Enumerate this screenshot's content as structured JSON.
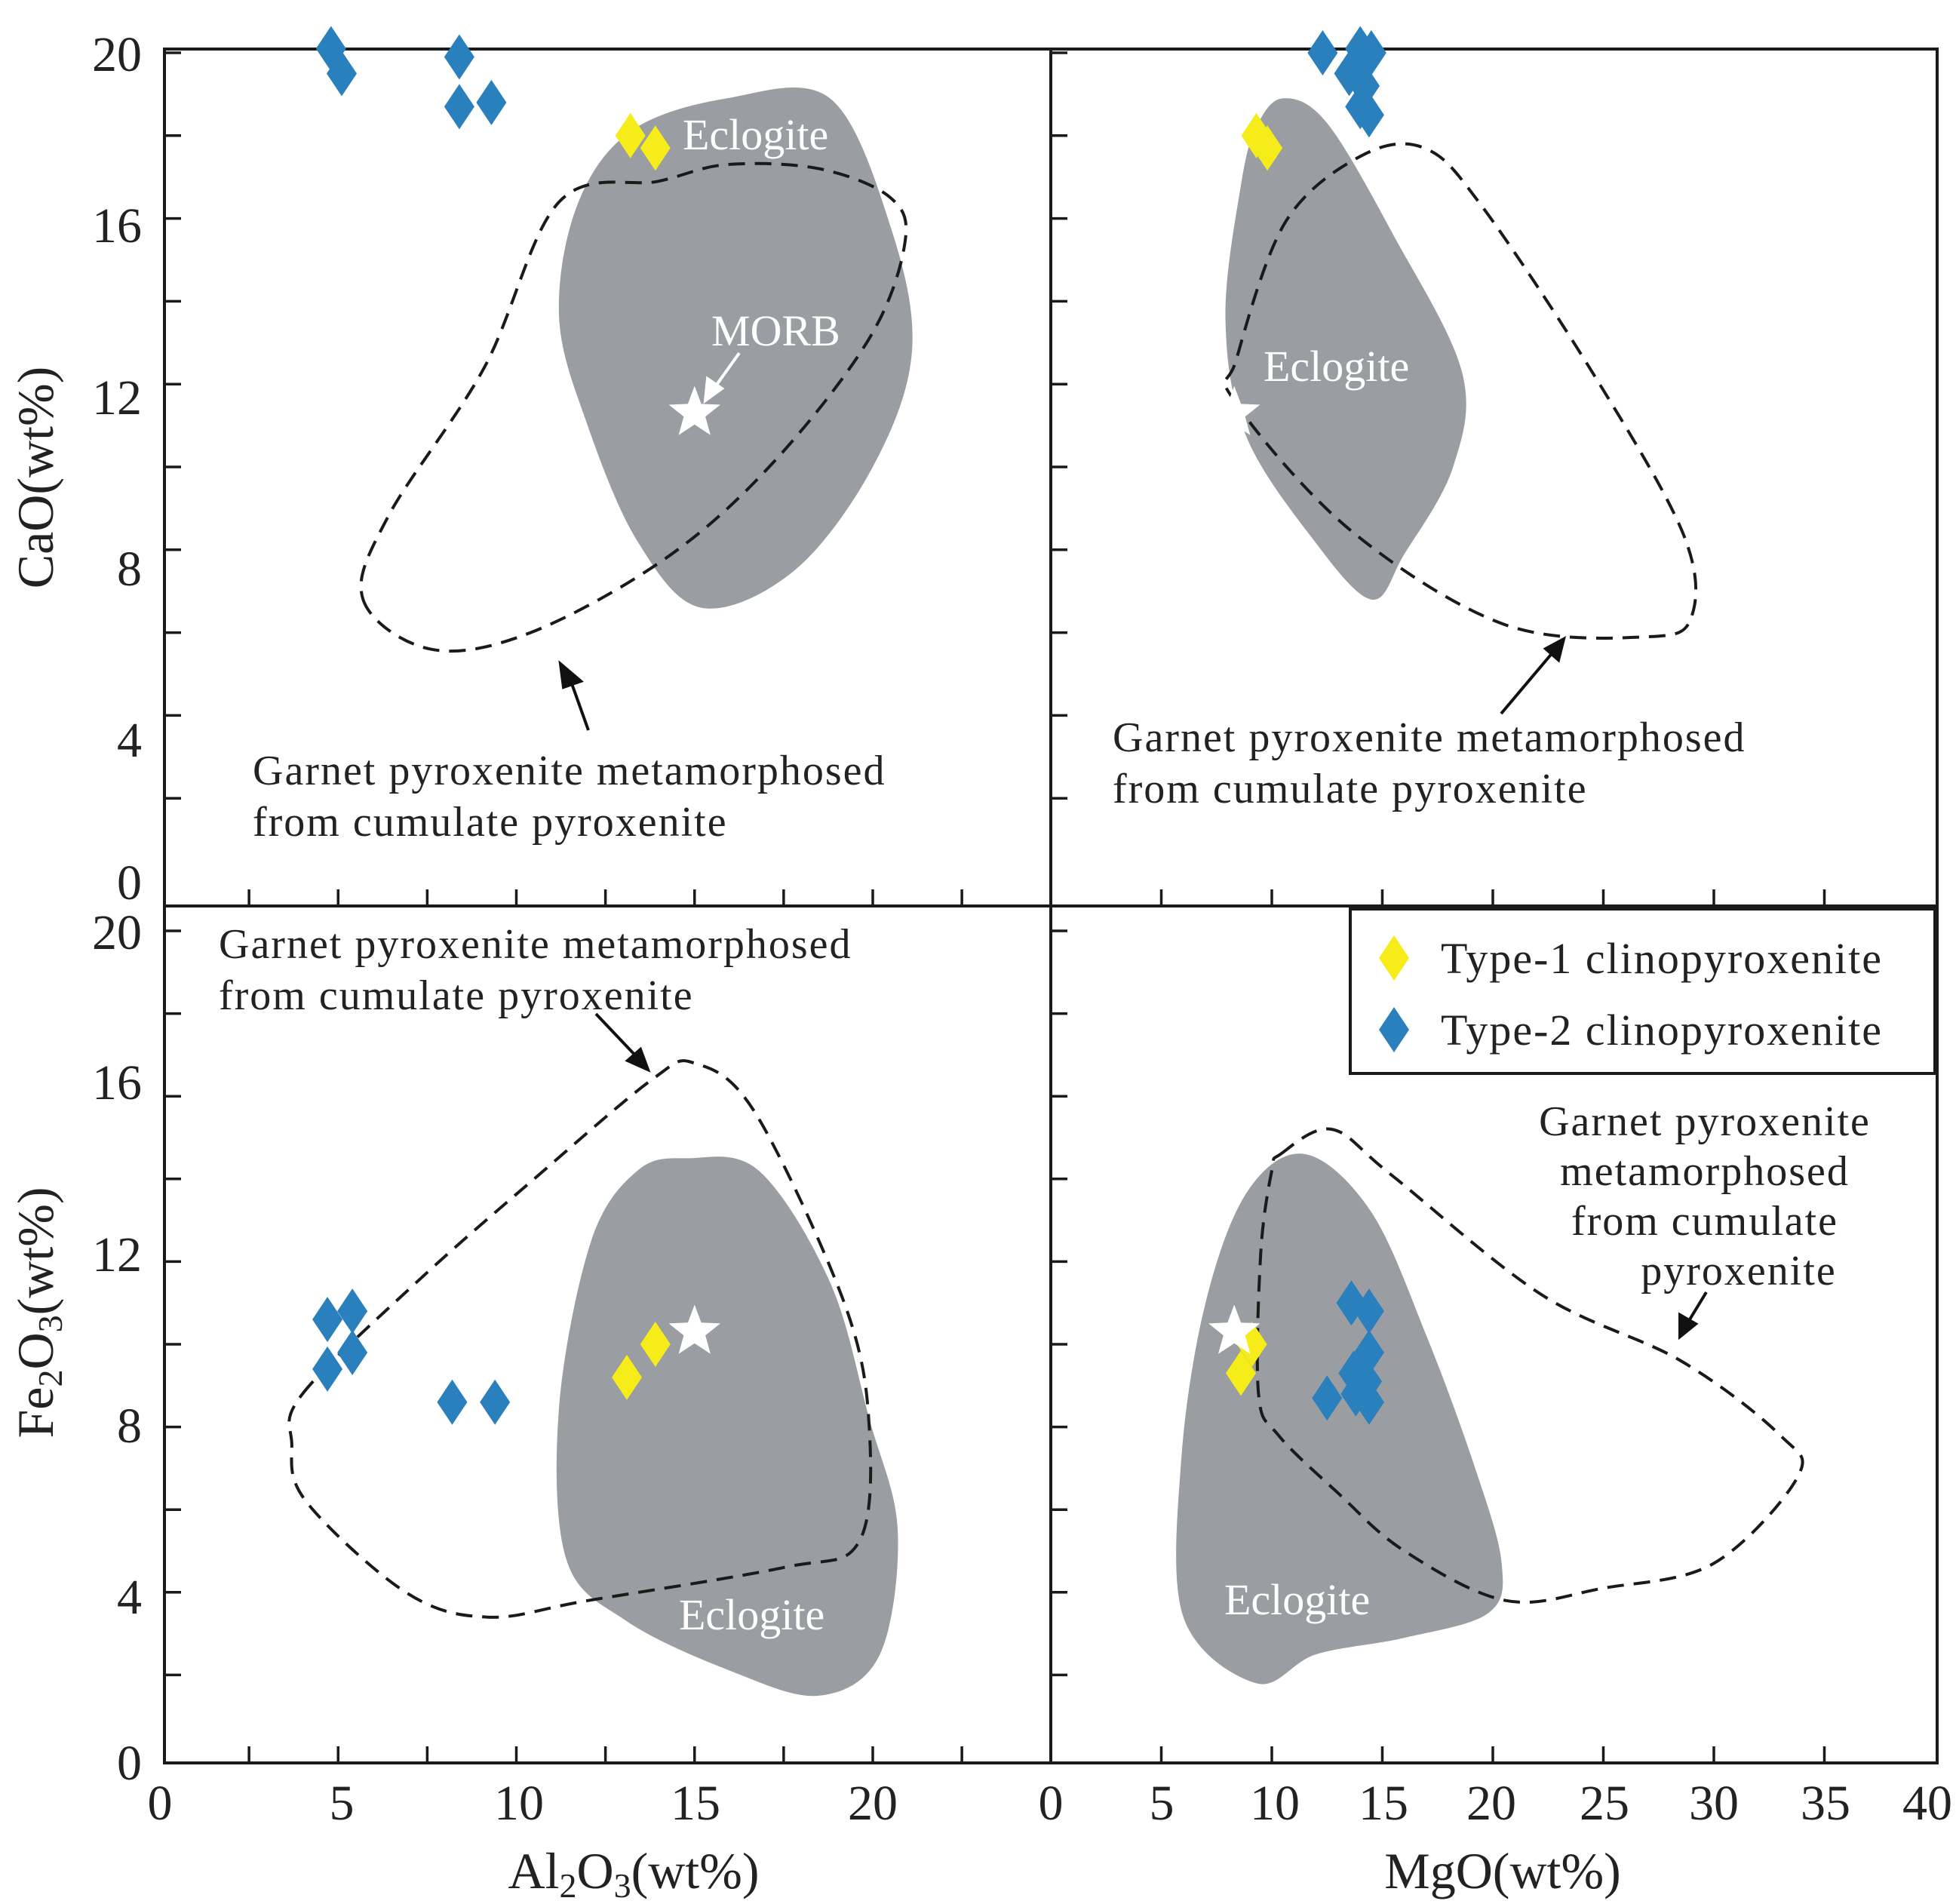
{
  "chart_data": {
    "type": "scatter",
    "layout": "2x2 panel grid with shared axes",
    "colors": {
      "type1": "#f5ec1a",
      "type2": "#2a7fbd",
      "eclogite_fill": "#9a9da1",
      "morb_marker": "#ffffff",
      "outline": "#1a1a1a"
    },
    "legend": {
      "placement": "bottom-right panel, top-right",
      "entries": [
        {
          "key": "type1",
          "label": "Type-1 clinopyroxenite"
        },
        {
          "key": "type2",
          "label": "Type-2 clinopyroxenite"
        }
      ]
    },
    "axes": {
      "x_al2o3": {
        "label_parts": [
          "Al",
          "2",
          "O",
          "3",
          "(wt%)"
        ],
        "ticks": [
          "0",
          "5",
          "10",
          "15",
          "20"
        ],
        "range": [
          0,
          25
        ]
      },
      "x_mgo": {
        "label": "MgO(wt%)",
        "ticks": [
          "0",
          "5",
          "10",
          "15",
          "20",
          "25",
          "30",
          "35",
          "40"
        ],
        "range": [
          0,
          40
        ]
      },
      "y_cao": {
        "label": "CaO(wt%)",
        "ticks": [
          "0",
          "4",
          "8",
          "12",
          "16",
          "20"
        ],
        "range": [
          0,
          20
        ]
      },
      "y_fe2o3": {
        "label_parts": [
          "Fe",
          "2",
          "O",
          "3",
          "(wt%)"
        ],
        "ticks": [
          "0",
          "4",
          "8",
          "12",
          "16",
          "20"
        ],
        "range": [
          0,
          20
        ]
      }
    },
    "panels": [
      {
        "id": "cao-vs-al2o3",
        "x": "Al2O3",
        "y": "CaO",
        "type1": [
          [
            13.2,
            18.0
          ],
          [
            13.9,
            17.7
          ]
        ],
        "type2": [
          [
            4.8,
            20.1
          ],
          [
            5.1,
            19.5
          ],
          [
            8.4,
            19.9
          ],
          [
            8.4,
            18.7
          ],
          [
            9.3,
            18.8
          ]
        ],
        "morb": [
          15.0,
          11.3
        ],
        "eclogite_label": "Eclogite",
        "morb_label": "MORB",
        "annotation_lines": [
          "Garnet pyroxenite metamorphosed",
          "from cumulate pyroxenite"
        ],
        "eclogite_region": [
          [
            15.9,
            18.9
          ],
          [
            18.8,
            18.9
          ],
          [
            20.5,
            15.8
          ],
          [
            21.1,
            12.8
          ],
          [
            20.0,
            10.0
          ],
          [
            17.8,
            7.5
          ],
          [
            15.2,
            6.6
          ],
          [
            13.4,
            8.2
          ],
          [
            12.0,
            11.0
          ],
          [
            11.2,
            13.6
          ],
          [
            11.7,
            16.3
          ],
          [
            13.2,
            18.1
          ]
        ],
        "pyroxenite_region": [
          [
            5.7,
            6.8
          ],
          [
            7.6,
            5.6
          ],
          [
            10.4,
            6.0
          ],
          [
            14.2,
            7.8
          ],
          [
            17.2,
            10.1
          ],
          [
            19.9,
            13.1
          ],
          [
            20.9,
            15.4
          ],
          [
            20.5,
            16.5
          ],
          [
            18.5,
            17.2
          ],
          [
            15.9,
            17.3
          ],
          [
            14.0,
            16.9
          ],
          [
            11.2,
            16.4
          ],
          [
            9.1,
            12.4
          ],
          [
            6.4,
            8.8
          ]
        ]
      },
      {
        "id": "cao-vs-mgo",
        "x": "MgO",
        "y": "CaO",
        "type1": [
          [
            9.3,
            18.0
          ],
          [
            9.8,
            17.7
          ]
        ],
        "type2": [
          [
            12.3,
            20.0
          ],
          [
            14.0,
            20.1
          ],
          [
            14.5,
            20.0
          ],
          [
            13.5,
            19.5
          ],
          [
            14.2,
            19.2
          ],
          [
            14.0,
            18.7
          ],
          [
            14.4,
            18.5
          ]
        ],
        "morb": [
          8.3,
          11.3
        ],
        "eclogite_label": "Eclogite",
        "annotation_lines": [
          "Garnet pyroxenite metamorphosed",
          "from cumulate pyroxenite"
        ],
        "eclogite_region": [
          [
            10.5,
            18.9
          ],
          [
            12.5,
            18.3
          ],
          [
            15.5,
            15.6
          ],
          [
            18.6,
            12.3
          ],
          [
            18.2,
            10.0
          ],
          [
            16.0,
            7.9
          ],
          [
            14.5,
            6.8
          ],
          [
            11.8,
            8.3
          ],
          [
            8.8,
            10.8
          ],
          [
            7.9,
            13.6
          ],
          [
            8.6,
            16.8
          ],
          [
            9.3,
            18.2
          ]
        ],
        "pyroxenite_region": [
          [
            8.3,
            11.6
          ],
          [
            13.5,
            8.5
          ],
          [
            20.5,
            6.2
          ],
          [
            27.0,
            5.9
          ],
          [
            29.0,
            6.4
          ],
          [
            28.6,
            8.4
          ],
          [
            24.6,
            12.2
          ],
          [
            19.5,
            16.3
          ],
          [
            16.9,
            17.7
          ],
          [
            14.0,
            17.5
          ],
          [
            10.6,
            15.9
          ],
          [
            8.4,
            12.6
          ]
        ]
      },
      {
        "id": "fe2o3-vs-al2o3",
        "x": "Al2O3",
        "y": "Fe2O3",
        "type1": [
          [
            13.1,
            9.2
          ],
          [
            13.9,
            10.0
          ]
        ],
        "type2": [
          [
            4.7,
            10.6
          ],
          [
            5.4,
            10.8
          ],
          [
            4.7,
            9.4
          ],
          [
            5.4,
            9.8
          ],
          [
            8.2,
            8.6
          ],
          [
            9.4,
            8.6
          ]
        ],
        "morb": [
          15.0,
          10.3
        ],
        "eclogite_label": "Eclogite",
        "annotation_lines": [
          "Garnet pyroxenite metamorphosed",
          "from cumulate pyroxenite"
        ],
        "eclogite_region": [
          [
            14.8,
            14.5
          ],
          [
            16.8,
            14.2
          ],
          [
            18.8,
            11.5
          ],
          [
            19.9,
            8.2
          ],
          [
            20.7,
            5.5
          ],
          [
            20.2,
            2.5
          ],
          [
            18.5,
            1.5
          ],
          [
            16.0,
            2.1
          ],
          [
            13.1,
            3.3
          ],
          [
            11.4,
            4.8
          ],
          [
            11.2,
            8.5
          ],
          [
            12.1,
            12.5
          ],
          [
            13.4,
            14.2
          ]
        ],
        "pyroxenite_region": [
          [
            4.0,
            8.8
          ],
          [
            7.2,
            11.5
          ],
          [
            10.5,
            14.0
          ],
          [
            13.8,
            16.4
          ],
          [
            15.0,
            16.8
          ],
          [
            16.7,
            15.6
          ],
          [
            19.2,
            11.0
          ],
          [
            19.9,
            8.0
          ],
          [
            19.6,
            5.2
          ],
          [
            17.5,
            4.6
          ],
          [
            12.0,
            3.8
          ],
          [
            9.2,
            3.4
          ],
          [
            6.9,
            4.0
          ],
          [
            4.1,
            6.2
          ],
          [
            3.7,
            7.6
          ]
        ]
      },
      {
        "id": "fe2o3-vs-mgo",
        "x": "MgO",
        "y": "Fe2O3",
        "type1": [
          [
            8.6,
            9.3
          ],
          [
            9.1,
            10.0
          ]
        ],
        "type2": [
          [
            13.6,
            11.0
          ],
          [
            14.4,
            10.8
          ],
          [
            14.4,
            9.8
          ],
          [
            13.7,
            9.3
          ],
          [
            14.3,
            9.1
          ],
          [
            12.5,
            8.7
          ],
          [
            13.8,
            8.8
          ],
          [
            14.4,
            8.6
          ]
        ],
        "morb": [
          8.3,
          10.3
        ],
        "eclogite_label": "Eclogite",
        "annotation_lines": [
          "Garnet pyroxenite",
          "metamorphosed",
          "from cumulate",
          "pyroxenite"
        ],
        "eclogite_region": [
          [
            8.9,
            13.7
          ],
          [
            11.5,
            14.6
          ],
          [
            14.5,
            13.2
          ],
          [
            17.0,
            10.2
          ],
          [
            19.2,
            7.0
          ],
          [
            20.4,
            4.7
          ],
          [
            19.8,
            3.5
          ],
          [
            16.0,
            2.9
          ],
          [
            12.0,
            2.5
          ],
          [
            9.3,
            1.8
          ],
          [
            6.0,
            3.4
          ],
          [
            5.9,
            7.2
          ],
          [
            7.0,
            11.0
          ]
        ],
        "pyroxenite_region": [
          [
            10.4,
            14.6
          ],
          [
            12.7,
            15.2
          ],
          [
            15.4,
            14.1
          ],
          [
            22.2,
            11.2
          ],
          [
            28.5,
            9.6
          ],
          [
            33.0,
            7.8
          ],
          [
            33.8,
            6.8
          ],
          [
            30.0,
            4.7
          ],
          [
            25.0,
            4.1
          ],
          [
            20.6,
            3.8
          ],
          [
            16.0,
            5.0
          ],
          [
            13.0,
            6.4
          ],
          [
            10.3,
            7.8
          ],
          [
            9.4,
            8.8
          ],
          [
            9.5,
            12.2
          ],
          [
            10.0,
            14.2
          ]
        ]
      }
    ]
  }
}
